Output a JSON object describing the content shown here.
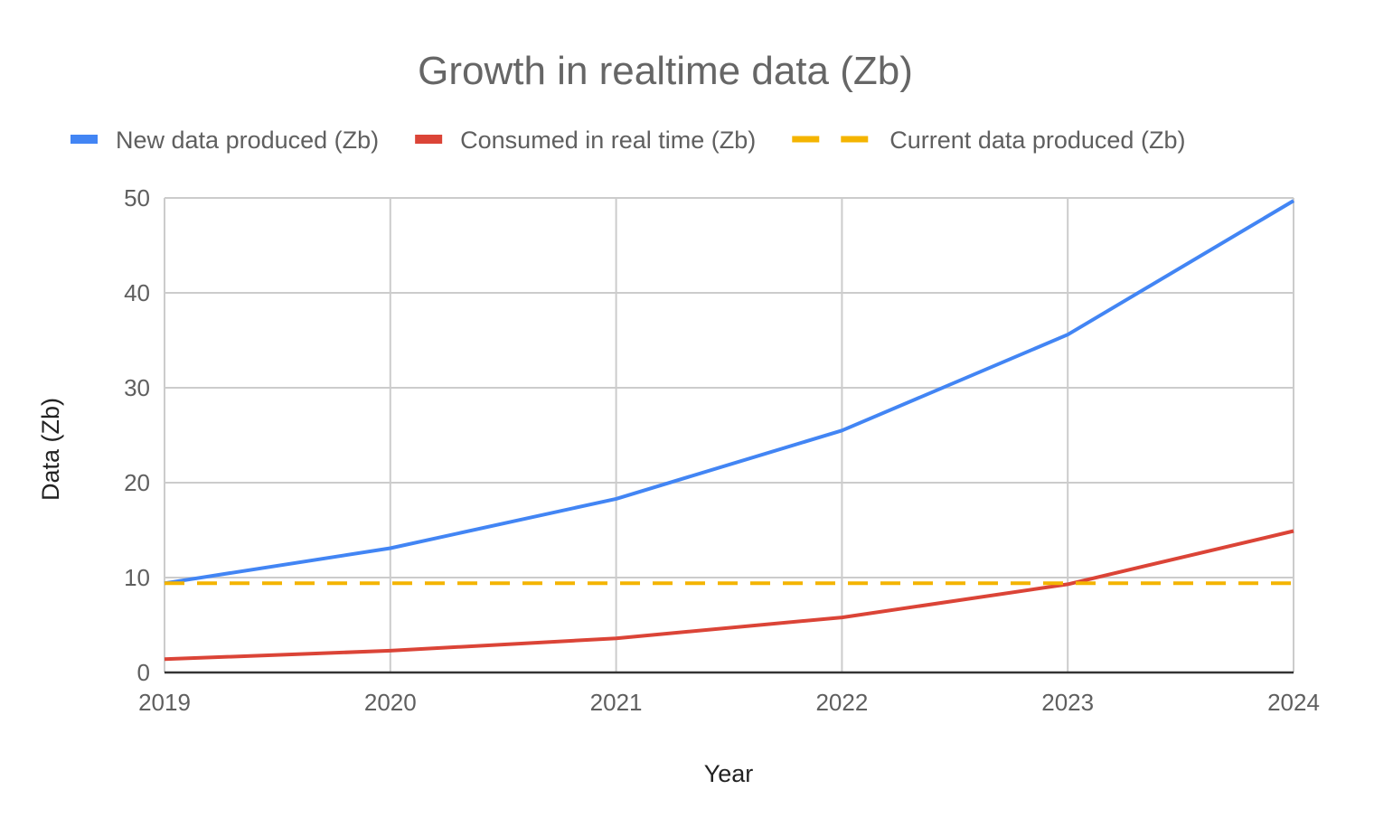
{
  "chart_data": {
    "type": "line",
    "title": "Growth in realtime data (Zb)",
    "xlabel": "Year",
    "ylabel": "Data (Zb)",
    "x": [
      "2019",
      "2020",
      "2021",
      "2022",
      "2023",
      "2024"
    ],
    "ylim": [
      0,
      50
    ],
    "yticks": [
      "0",
      "10",
      "20",
      "30",
      "40",
      "50"
    ],
    "grid": true,
    "legend_position": "top",
    "series": [
      {
        "name": "New data produced (Zb)",
        "values": [
          9.4,
          13.1,
          18.3,
          25.5,
          35.6,
          49.7
        ],
        "color": "#4285f4",
        "style": "solid"
      },
      {
        "name": "Consumed in real time (Zb)",
        "values": [
          1.4,
          2.3,
          3.6,
          5.8,
          9.3,
          14.9
        ],
        "color": "#db4437",
        "style": "solid"
      },
      {
        "name": "Current data produced (Zb)",
        "values": [
          9.4,
          9.4,
          9.4,
          9.4,
          9.4,
          9.4
        ],
        "color": "#f4b400",
        "style": "dashed"
      }
    ]
  }
}
